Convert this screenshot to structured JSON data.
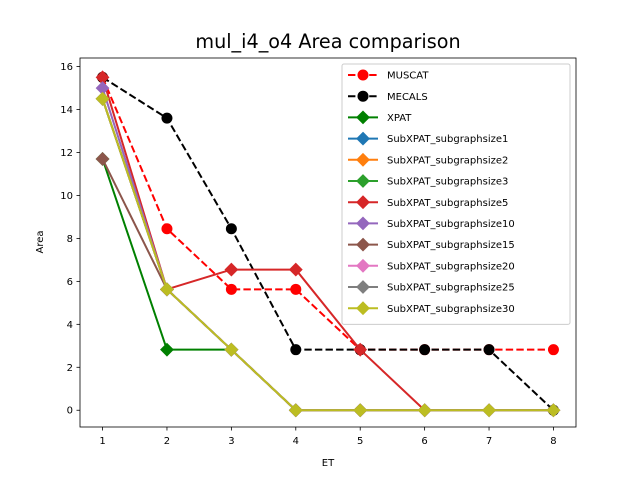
{
  "chart_data": {
    "type": "line",
    "title": "mul_i4_o4 Area comparison",
    "xlabel": "ET",
    "ylabel": "Area",
    "xlim": [
      0.65,
      8.35
    ],
    "ylim": [
      -0.78,
      16.4
    ],
    "xticks": [
      1,
      2,
      3,
      4,
      5,
      6,
      7,
      8
    ],
    "yticks": [
      0,
      2,
      4,
      6,
      8,
      10,
      12,
      14,
      16
    ],
    "grid": false,
    "legend_position": "top-right",
    "series": [
      {
        "name": "MUSCAT",
        "color": "#ff0000",
        "dash": "dashed",
        "marker": "circle",
        "x": [
          1,
          2,
          3,
          4,
          5,
          6,
          7,
          8
        ],
        "y": [
          15.5,
          8.45,
          5.63,
          5.63,
          2.82,
          2.82,
          2.82,
          2.82
        ]
      },
      {
        "name": "MECALS",
        "color": "#000000",
        "dash": "dashed",
        "marker": "circle",
        "x": [
          1,
          2,
          3,
          4,
          5,
          6,
          7,
          8
        ],
        "y": [
          15.5,
          13.6,
          8.45,
          2.82,
          2.82,
          2.82,
          2.82,
          0
        ]
      },
      {
        "name": "XPAT",
        "color": "#008000",
        "dash": "solid",
        "marker": "diamond",
        "x": [
          1,
          2,
          3
        ],
        "y": [
          11.7,
          2.82,
          2.82
        ]
      },
      {
        "name": "SubXPAT_subgraphsize1",
        "color": "#1f77b4",
        "dash": "solid",
        "marker": "diamond",
        "x": [
          1,
          2,
          3,
          4,
          5,
          6,
          7,
          8
        ],
        "y": [
          14.5,
          5.63,
          2.82,
          0,
          0,
          0,
          0,
          0
        ]
      },
      {
        "name": "SubXPAT_subgraphsize2",
        "color": "#ff7f0e",
        "dash": "solid",
        "marker": "diamond",
        "x": [
          1,
          2,
          3,
          4,
          5,
          6,
          7,
          8
        ],
        "y": [
          14.5,
          5.63,
          2.82,
          0,
          0,
          0,
          0,
          0
        ]
      },
      {
        "name": "SubXPAT_subgraphsize3",
        "color": "#2ca02c",
        "dash": "solid",
        "marker": "diamond",
        "x": [
          1,
          2,
          3,
          4,
          5,
          6,
          7,
          8
        ],
        "y": [
          14.5,
          5.63,
          2.82,
          0,
          0,
          0,
          0,
          0
        ]
      },
      {
        "name": "SubXPAT_subgraphsize5",
        "color": "#d62728",
        "dash": "solid",
        "marker": "diamond",
        "x": [
          1,
          2,
          3,
          4,
          5,
          6,
          7,
          8
        ],
        "y": [
          15.5,
          5.63,
          6.55,
          6.55,
          2.82,
          0,
          0,
          0
        ]
      },
      {
        "name": "SubXPAT_subgraphsize10",
        "color": "#9467bd",
        "dash": "solid",
        "marker": "diamond",
        "x": [
          1,
          2,
          3,
          4,
          5,
          6,
          7,
          8
        ],
        "y": [
          15.0,
          5.63,
          2.82,
          0,
          0,
          0,
          0,
          0
        ]
      },
      {
        "name": "SubXPAT_subgraphsize15",
        "color": "#8c564b",
        "dash": "solid",
        "marker": "diamond",
        "x": [
          1,
          2,
          3,
          4,
          5,
          6,
          7,
          8
        ],
        "y": [
          11.7,
          5.63,
          2.82,
          0,
          0,
          0,
          0,
          0
        ]
      },
      {
        "name": "SubXPAT_subgraphsize20",
        "color": "#e377c2",
        "dash": "solid",
        "marker": "diamond",
        "x": [
          1,
          2,
          3,
          4,
          5,
          6,
          7,
          8
        ],
        "y": [
          14.5,
          5.63,
          2.82,
          0,
          0,
          0,
          0,
          0
        ]
      },
      {
        "name": "SubXPAT_subgraphsize25",
        "color": "#7f7f7f",
        "dash": "solid",
        "marker": "diamond",
        "x": [
          1,
          2,
          3,
          4,
          5,
          6,
          7,
          8
        ],
        "y": [
          14.5,
          5.63,
          2.82,
          0,
          0,
          0,
          0,
          0
        ]
      },
      {
        "name": "SubXPAT_subgraphsize30",
        "color": "#bcbd22",
        "dash": "solid",
        "marker": "diamond",
        "x": [
          1,
          2,
          3,
          4,
          5,
          6,
          7,
          8
        ],
        "y": [
          14.5,
          5.63,
          2.82,
          0,
          0,
          0,
          0,
          0
        ]
      }
    ]
  }
}
